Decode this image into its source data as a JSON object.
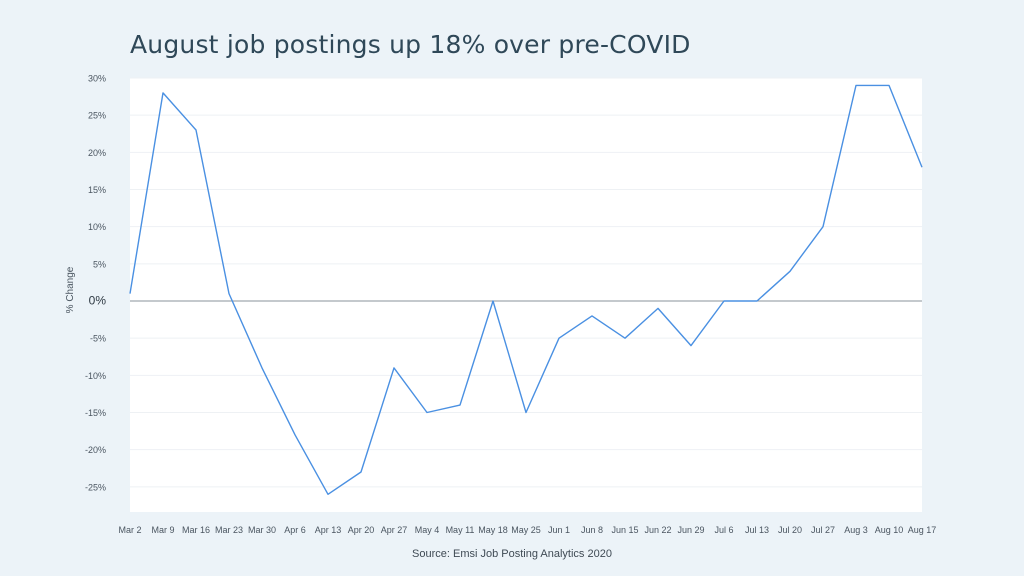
{
  "chart_data": {
    "type": "line",
    "title": "August job postings up 18% over pre-COVID",
    "ylabel": "% Change",
    "xlabel": "",
    "source": "Source: Emsi Job Posting Analytics 2020",
    "ylim": [
      -28,
      30
    ],
    "y_ticks": [
      30,
      25,
      20,
      15,
      10,
      5,
      0,
      -5,
      -10,
      -15,
      -20,
      -25
    ],
    "y_tick_labels": [
      "30%",
      "25%",
      "20%",
      "15%",
      "10%",
      "5%",
      "0%",
      "-5%",
      "-10%",
      "-15%",
      "-20%",
      "-25%"
    ],
    "grid": true,
    "line_color": "#4a90e2",
    "categories": [
      "Mar 2",
      "Mar 9",
      "Mar 16",
      "Mar 23",
      "Mar 30",
      "Apr 6",
      "Apr 13",
      "Apr 20",
      "Apr 27",
      "May 4",
      "May 11",
      "May 18",
      "May 25",
      "Jun 1",
      "Jun 8",
      "Jun 15",
      "Jun 22",
      "Jun 29",
      "Jul 6",
      "Jul 13",
      "Jul 20",
      "Jul 27",
      "Aug 3",
      "Aug 10",
      "Aug 17"
    ],
    "values": [
      1,
      28,
      23,
      1,
      -9,
      -18,
      -26,
      -23,
      -9,
      -15,
      -14,
      0,
      -15,
      -5,
      -2,
      -5,
      -1,
      -6,
      0,
      0,
      4,
      10,
      29,
      29,
      18
    ]
  }
}
